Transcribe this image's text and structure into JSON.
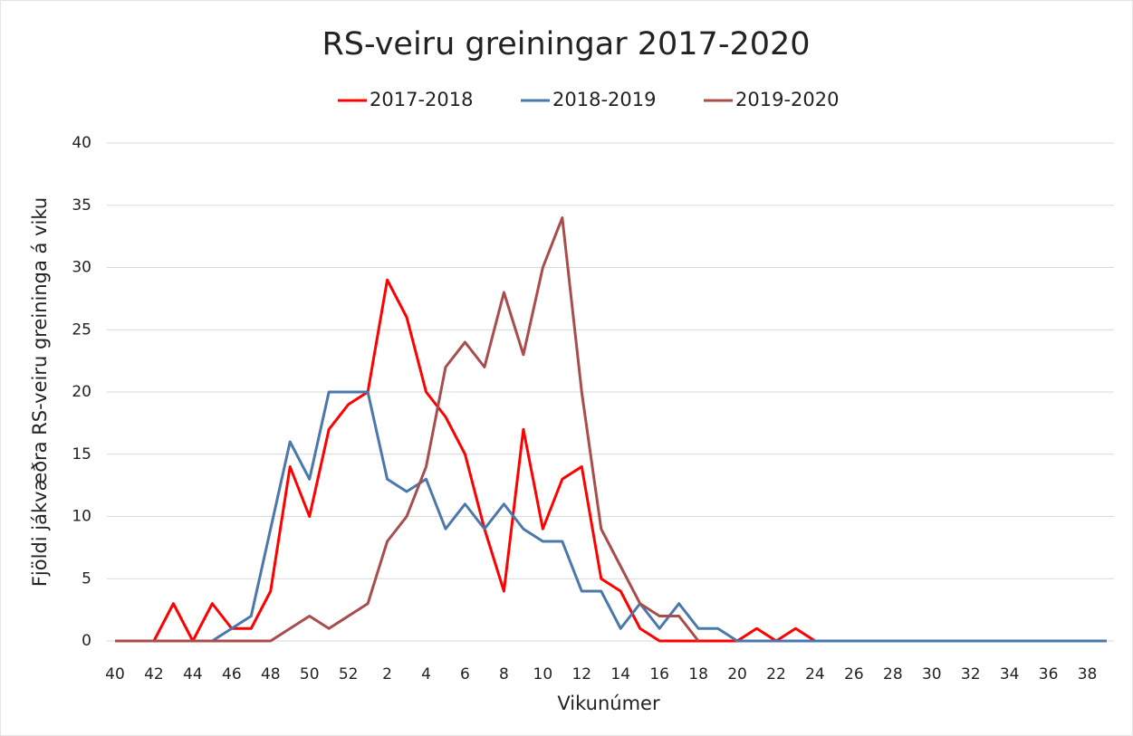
{
  "chart_data": {
    "type": "line",
    "title": "RS-veiru greiningar  2017-2020",
    "x_label": "Vikunúmer",
    "y_label": "Fjöldi jákvæðra RS-veiru greininga á viku",
    "categories": [
      "40",
      null,
      "42",
      null,
      "44",
      null,
      "46",
      null,
      "48",
      null,
      "50",
      null,
      "52",
      null,
      "2",
      null,
      "4",
      null,
      "6",
      null,
      "8",
      null,
      "10",
      null,
      "12",
      null,
      "14",
      null,
      "16",
      null,
      "18",
      null,
      "20",
      null,
      "22",
      null,
      "24",
      null,
      "26",
      null,
      "28",
      null,
      "30",
      null,
      "32",
      null,
      "34",
      null,
      "36",
      null,
      "38",
      null
    ],
    "series": [
      {
        "name": "2017-2018",
        "color": "#ff0000",
        "values": [
          0,
          0,
          0,
          3,
          0,
          3,
          1,
          1,
          4,
          14,
          10,
          17,
          19,
          20,
          29,
          26,
          20,
          18,
          15,
          9,
          4,
          17,
          9,
          13,
          14,
          5,
          4,
          1,
          0,
          0,
          0,
          0,
          0,
          1,
          0,
          1,
          0,
          0,
          0,
          0,
          0,
          0,
          0,
          0,
          0,
          0,
          0,
          0,
          0,
          0,
          0,
          0
        ]
      },
      {
        "name": "2018-2019",
        "color": "#4a78ad",
        "values": [
          0,
          0,
          0,
          0,
          0,
          0,
          1,
          2,
          9,
          16,
          13,
          20,
          20,
          20,
          13,
          12,
          13,
          9,
          11,
          9,
          11,
          9,
          8,
          8,
          4,
          4,
          1,
          3,
          1,
          3,
          1,
          1,
          0,
          0,
          0,
          0,
          0,
          0,
          0,
          0,
          0,
          0,
          0,
          0,
          0,
          0,
          0,
          0,
          0,
          0,
          0,
          0
        ]
      },
      {
        "name": "2019-2020",
        "color": "#a84c4c",
        "values": [
          0,
          0,
          0,
          0,
          0,
          0,
          0,
          0,
          0,
          1,
          2,
          1,
          2,
          3,
          8,
          10,
          14,
          22,
          24,
          22,
          28,
          23,
          30,
          34,
          20,
          9,
          6,
          3,
          2,
          2,
          0,
          null,
          null,
          null,
          null,
          null,
          null,
          null,
          null,
          null,
          null,
          null,
          null,
          null,
          null,
          null,
          null,
          null,
          null,
          null,
          null,
          null
        ]
      }
    ],
    "ylim": [
      0,
      40
    ],
    "yticks": [
      0,
      5,
      10,
      15,
      20,
      25,
      30,
      35,
      40
    ],
    "grid": true,
    "legend": "top"
  }
}
